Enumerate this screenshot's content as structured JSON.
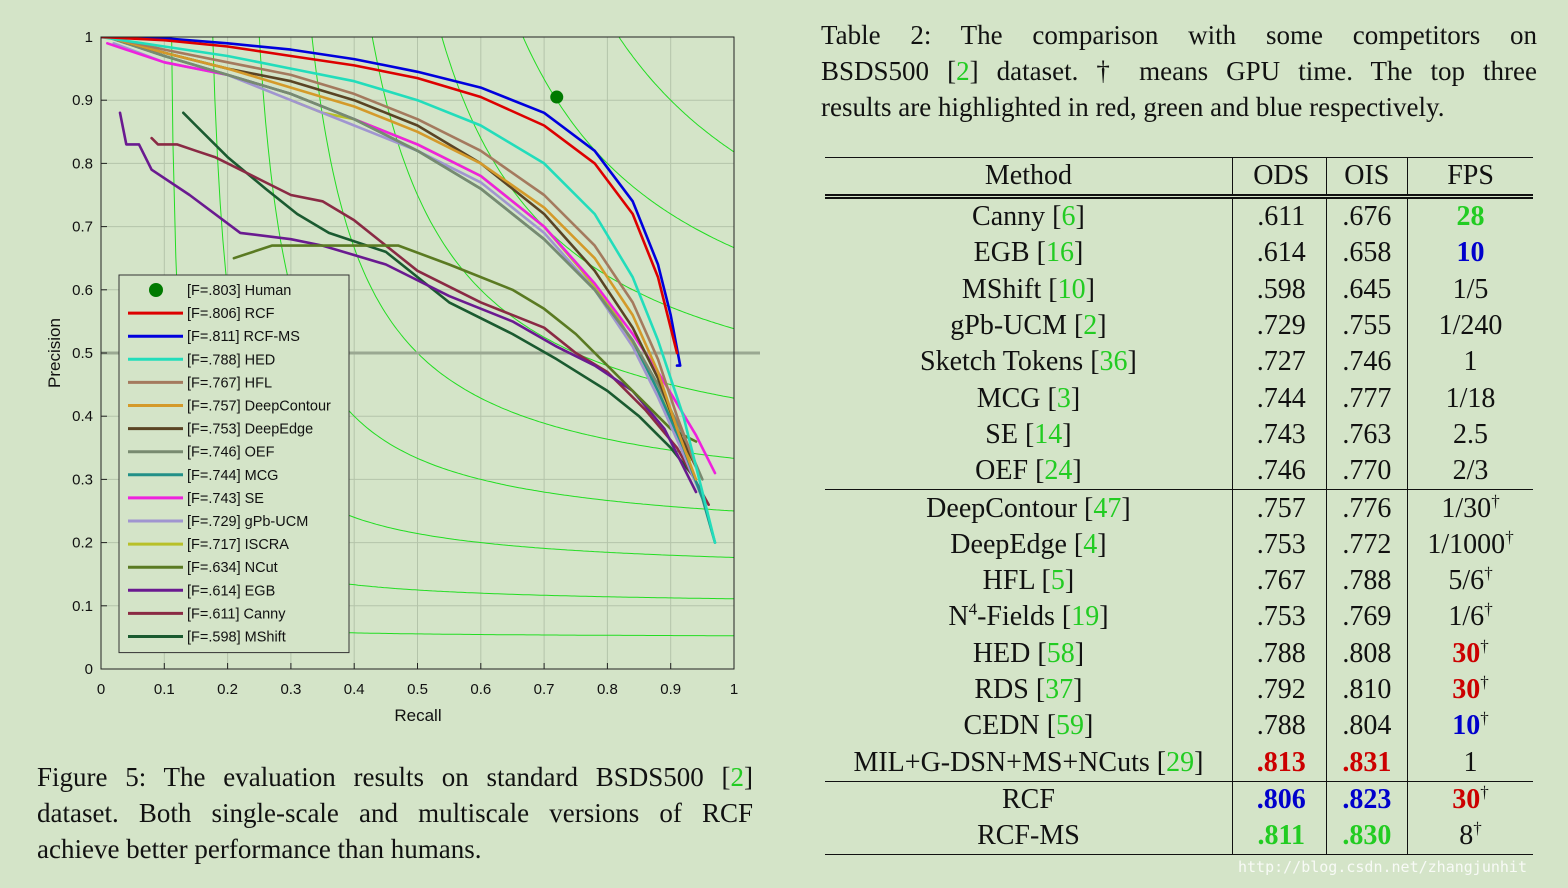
{
  "chart_data": {
    "type": "line",
    "xlabel": "Recall",
    "ylabel": "Precision",
    "xlim": [
      0,
      1
    ],
    "ylim": [
      0,
      1
    ],
    "xticks": [
      "0",
      "0.1",
      "0.2",
      "0.3",
      "0.4",
      "0.5",
      "0.6",
      "0.7",
      "0.8",
      "0.9",
      "1"
    ],
    "yticks": [
      "0",
      "0.1",
      "0.2",
      "0.3",
      "0.4",
      "0.5",
      "0.6",
      "0.7",
      "0.8",
      "0.9",
      "1"
    ],
    "grid": true,
    "legend_position": "lower-left",
    "human_point": {
      "name": "[F=.803] Human",
      "x": 0.72,
      "y": 0.905,
      "color": "#007a00"
    },
    "reference_line": {
      "y": 0.5,
      "color": "#9aa892"
    },
    "iso_f_color": "#22dd22",
    "iso_f_values": [
      0.1,
      0.2,
      0.3,
      0.4,
      0.5,
      0.6,
      0.7,
      0.8,
      0.9
    ],
    "series": [
      {
        "name": "[F=.806] RCF",
        "color": "#dd0000",
        "x": [
          0.0,
          0.1,
          0.2,
          0.3,
          0.4,
          0.5,
          0.6,
          0.7,
          0.78,
          0.84,
          0.88,
          0.91
        ],
        "y": [
          1.0,
          0.995,
          0.985,
          0.97,
          0.955,
          0.935,
          0.905,
          0.86,
          0.8,
          0.72,
          0.62,
          0.5
        ]
      },
      {
        "name": "[F=.811] RCF-MS",
        "color": "#0000dd",
        "x": [
          0.0,
          0.1,
          0.2,
          0.3,
          0.4,
          0.5,
          0.6,
          0.7,
          0.78,
          0.84,
          0.88,
          0.9,
          0.915,
          0.91
        ],
        "y": [
          1.0,
          0.998,
          0.99,
          0.98,
          0.965,
          0.945,
          0.92,
          0.88,
          0.82,
          0.74,
          0.64,
          0.56,
          0.48,
          0.48
        ]
      },
      {
        "name": "[F=.788] HED",
        "color": "#22ddbb",
        "x": [
          0.0,
          0.1,
          0.2,
          0.3,
          0.4,
          0.5,
          0.6,
          0.7,
          0.78,
          0.84,
          0.88,
          0.92,
          0.95,
          0.97
        ],
        "y": [
          1.0,
          0.985,
          0.97,
          0.95,
          0.93,
          0.9,
          0.86,
          0.8,
          0.72,
          0.62,
          0.52,
          0.4,
          0.28,
          0.2
        ]
      },
      {
        "name": "[F=.767] HFL",
        "color": "#a47a5e",
        "x": [
          0.01,
          0.1,
          0.2,
          0.3,
          0.4,
          0.5,
          0.6,
          0.7,
          0.78,
          0.84,
          0.88,
          0.91,
          0.94
        ],
        "y": [
          1.0,
          0.98,
          0.96,
          0.94,
          0.91,
          0.87,
          0.82,
          0.75,
          0.67,
          0.58,
          0.49,
          0.4,
          0.32
        ]
      },
      {
        "name": "[F=.757] DeepContour",
        "color": "#d49a2a",
        "x": [
          0.01,
          0.1,
          0.2,
          0.3,
          0.4,
          0.5,
          0.6,
          0.7,
          0.78,
          0.84,
          0.88,
          0.91,
          0.94
        ],
        "y": [
          1.0,
          0.975,
          0.95,
          0.92,
          0.89,
          0.85,
          0.8,
          0.73,
          0.65,
          0.56,
          0.47,
          0.38,
          0.3
        ]
      },
      {
        "name": "[F=.753] DeepEdge",
        "color": "#5a4424",
        "x": [
          0.01,
          0.1,
          0.2,
          0.3,
          0.4,
          0.5,
          0.6,
          0.7,
          0.78,
          0.84,
          0.88,
          0.91,
          0.94
        ],
        "y": [
          1.0,
          0.975,
          0.95,
          0.93,
          0.9,
          0.86,
          0.8,
          0.72,
          0.63,
          0.54,
          0.46,
          0.38,
          0.32
        ]
      },
      {
        "name": "[F=.746] OEF",
        "color": "#788a70",
        "x": [
          0.01,
          0.1,
          0.2,
          0.3,
          0.4,
          0.5,
          0.6,
          0.7,
          0.78,
          0.84,
          0.88,
          0.92,
          0.95
        ],
        "y": [
          1.0,
          0.97,
          0.94,
          0.91,
          0.87,
          0.82,
          0.76,
          0.68,
          0.6,
          0.52,
          0.45,
          0.37,
          0.3
        ]
      },
      {
        "name": "[F=.744] MCG",
        "color": "#229088",
        "x": [
          0.01,
          0.1,
          0.2,
          0.3,
          0.4,
          0.5,
          0.6,
          0.7,
          0.78,
          0.84,
          0.88,
          0.92,
          0.95,
          0.97
        ],
        "y": [
          1.0,
          0.97,
          0.94,
          0.91,
          0.87,
          0.82,
          0.76,
          0.68,
          0.6,
          0.52,
          0.44,
          0.35,
          0.27,
          0.2
        ]
      },
      {
        "name": "[F=.743] SE",
        "color": "#ee22dd",
        "x": [
          0.01,
          0.1,
          0.2,
          0.3,
          0.4,
          0.5,
          0.6,
          0.7,
          0.78,
          0.84,
          0.88,
          0.91,
          0.94,
          0.97
        ],
        "y": [
          0.99,
          0.96,
          0.94,
          0.91,
          0.87,
          0.83,
          0.78,
          0.7,
          0.61,
          0.53,
          0.47,
          0.42,
          0.37,
          0.31
        ]
      },
      {
        "name": "[F=.729] gPb-UCM",
        "color": "#a095d0",
        "x": [
          0.02,
          0.1,
          0.2,
          0.3,
          0.4,
          0.5,
          0.6,
          0.7,
          0.78,
          0.84,
          0.88,
          0.92,
          0.95
        ],
        "y": [
          0.99,
          0.96,
          0.94,
          0.9,
          0.86,
          0.82,
          0.77,
          0.69,
          0.6,
          0.51,
          0.43,
          0.34,
          0.27
        ]
      },
      {
        "name": "[F=.717] ISCRA",
        "color": "#b8c028",
        "x": [
          0.3,
          0.35,
          0.4,
          0.5,
          0.6,
          0.7,
          0.76,
          0.82,
          0.86,
          0.9,
          0.93
        ],
        "y": [
          0.9,
          0.88,
          0.87,
          0.83,
          0.78,
          0.7,
          0.63,
          0.55,
          0.48,
          0.4,
          0.33
        ]
      },
      {
        "name": "[F=.634] NCut",
        "color": "#5a7a22",
        "x": [
          0.21,
          0.27,
          0.35,
          0.42,
          0.47,
          0.55,
          0.65,
          0.7,
          0.75,
          0.8,
          0.85,
          0.9,
          0.94
        ],
        "y": [
          0.65,
          0.67,
          0.67,
          0.67,
          0.67,
          0.64,
          0.6,
          0.57,
          0.53,
          0.48,
          0.43,
          0.38,
          0.36
        ]
      },
      {
        "name": "[F=.614] EGB",
        "color": "#6a1a90",
        "x": [
          0.03,
          0.04,
          0.06,
          0.08,
          0.14,
          0.22,
          0.3,
          0.35,
          0.45,
          0.55,
          0.65,
          0.72,
          0.78,
          0.84,
          0.89,
          0.94
        ],
        "y": [
          0.88,
          0.83,
          0.83,
          0.79,
          0.75,
          0.69,
          0.68,
          0.67,
          0.64,
          0.59,
          0.55,
          0.51,
          0.48,
          0.44,
          0.38,
          0.28
        ]
      },
      {
        "name": "[F=.611] Canny",
        "color": "#8a2a44",
        "x": [
          0.08,
          0.09,
          0.12,
          0.15,
          0.18,
          0.22,
          0.26,
          0.3,
          0.35,
          0.4,
          0.5,
          0.6,
          0.7,
          0.75,
          0.8,
          0.86,
          0.91,
          0.96
        ],
        "y": [
          0.84,
          0.83,
          0.83,
          0.82,
          0.81,
          0.79,
          0.77,
          0.75,
          0.74,
          0.71,
          0.63,
          0.58,
          0.54,
          0.5,
          0.47,
          0.41,
          0.35,
          0.26
        ]
      },
      {
        "name": "[F=.598] MShift",
        "color": "#1a5a30",
        "x": [
          0.13,
          0.15,
          0.2,
          0.26,
          0.31,
          0.36,
          0.45,
          0.55,
          0.65,
          0.72,
          0.8,
          0.85,
          0.9,
          0.94
        ],
        "y": [
          0.88,
          0.86,
          0.81,
          0.76,
          0.72,
          0.69,
          0.66,
          0.58,
          0.53,
          0.49,
          0.44,
          0.4,
          0.35,
          0.3
        ]
      }
    ]
  },
  "figure_caption": {
    "lines": [
      [
        "Figure 5: The evaluation results on standard BSDS500 [",
        "2",
        "]"
      ],
      [
        "dataset.  Both single-scale and multiscale versions of RCF"
      ],
      [
        "achieve better performance than humans."
      ]
    ]
  },
  "table_caption": {
    "lines": [
      [
        "Table 2:  The comparison with some competitors on"
      ],
      [
        "BSDS500 [",
        "2",
        "] dataset.  † means GPU time.  The top three"
      ],
      [
        "results are highlighted in red, green and blue respectively."
      ]
    ]
  },
  "table": {
    "headers": [
      "Method",
      "ODS",
      "OIS",
      "FPS"
    ],
    "groups": [
      [
        {
          "method": "Canny",
          "ref": "6",
          "ods": ".611",
          "ois": ".676",
          "fps": "28",
          "fps_color": "green"
        },
        {
          "method": "EGB",
          "ref": "16",
          "ods": ".614",
          "ois": ".658",
          "fps": "10",
          "fps_color": "blue"
        },
        {
          "method": "MShift",
          "ref": "10",
          "ods": ".598",
          "ois": ".645",
          "fps": "1/5"
        },
        {
          "method": "gPb-UCM",
          "ref": "2",
          "ods": ".729",
          "ois": ".755",
          "fps": "1/240"
        },
        {
          "method": "Sketch Tokens",
          "ref": "36",
          "ods": ".727",
          "ois": ".746",
          "fps": "1"
        },
        {
          "method": "MCG",
          "ref": "3",
          "ods": ".744",
          "ois": ".777",
          "fps": "1/18"
        },
        {
          "method": "SE",
          "ref": "14",
          "ods": ".743",
          "ois": ".763",
          "fps": "2.5"
        },
        {
          "method": "OEF",
          "ref": "24",
          "ods": ".746",
          "ois": ".770",
          "fps": "2/3"
        }
      ],
      [
        {
          "method": "DeepContour",
          "ref": "47",
          "ods": ".757",
          "ois": ".776",
          "fps": "1/30",
          "dagger": true
        },
        {
          "method": "DeepEdge",
          "ref": "4",
          "ods": ".753",
          "ois": ".772",
          "fps": "1/1000",
          "dagger": true
        },
        {
          "method": "HFL",
          "ref": "5",
          "ods": ".767",
          "ois": ".788",
          "fps": "5/6",
          "dagger": true
        },
        {
          "method": "N",
          "method_sup": "4",
          "method_rest": "-Fields",
          "ref": "19",
          "ods": ".753",
          "ois": ".769",
          "fps": "1/6",
          "dagger": true
        },
        {
          "method": "HED",
          "ref": "58",
          "ods": ".788",
          "ois": ".808",
          "fps": "30",
          "fps_color": "red",
          "dagger": true
        },
        {
          "method": "RDS",
          "ref": "37",
          "ods": ".792",
          "ois": ".810",
          "fps": "30",
          "fps_color": "red",
          "dagger": true
        },
        {
          "method": "CEDN",
          "ref": "59",
          "ods": ".788",
          "ois": ".804",
          "fps": "10",
          "fps_color": "blue",
          "dagger": true
        },
        {
          "method": "MIL+G-DSN+MS+NCuts",
          "ref": "29",
          "ods": ".813",
          "ods_color": "red",
          "ois": ".831",
          "ois_color": "red",
          "fps": "1"
        }
      ],
      [
        {
          "method": "RCF",
          "ods": ".806",
          "ods_color": "blue",
          "ois": ".823",
          "ois_color": "blue",
          "fps": "30",
          "fps_color": "red",
          "dagger": true
        },
        {
          "method": "RCF-MS",
          "ods": ".811",
          "ods_color": "green",
          "ois": ".830",
          "ois_color": "green",
          "fps": "8",
          "dagger": true
        }
      ]
    ]
  },
  "watermark": "http://blog.csdn.net/zhangjunhit"
}
